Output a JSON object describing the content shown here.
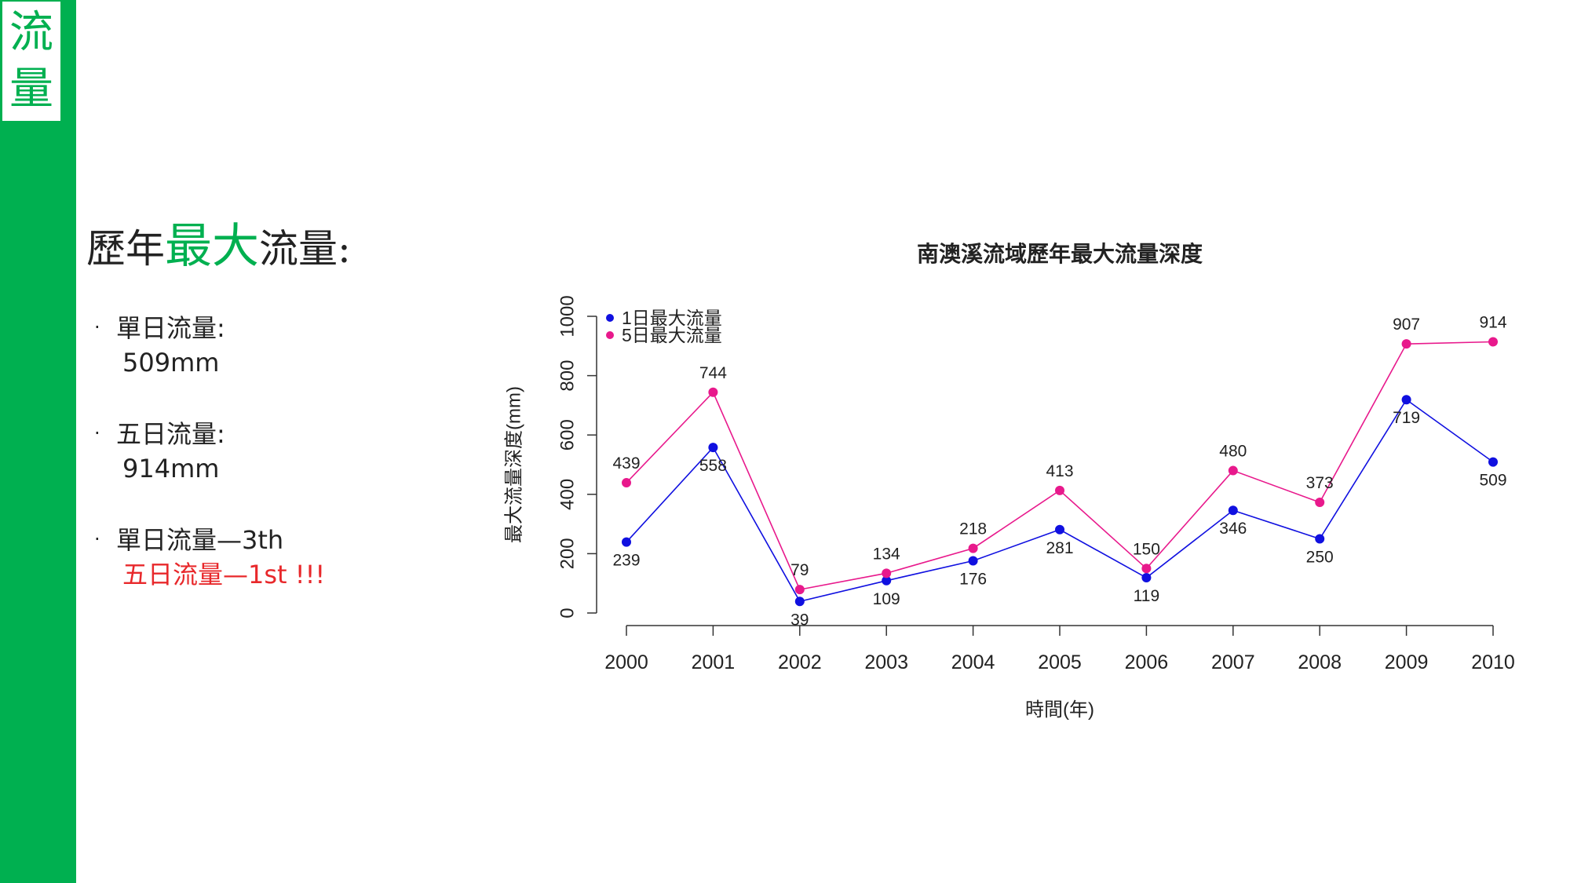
{
  "sidebar": {
    "chars": [
      "流",
      "量"
    ]
  },
  "heading": {
    "prefix": "歷年",
    "accent": "最大",
    "suffix": "流量:"
  },
  "bullets": [
    {
      "label": "單日流量:",
      "value": "509mm"
    },
    {
      "label": "五日流量:",
      "value": "914mm"
    },
    {
      "label": "單日流量—3th",
      "value": "五日流量—1st !!!"
    }
  ],
  "colors": {
    "accent": "#00b050",
    "highlight": "#e8282b",
    "series1": "#1010e0",
    "series5": "#e8198c"
  },
  "chart_data": {
    "type": "line",
    "title": "南澳溪流域歷年最大流量深度",
    "xlabel": "時間(年)",
    "ylabel": "最大流量深度(mm)",
    "x": [
      2000,
      2001,
      2002,
      2003,
      2004,
      2005,
      2006,
      2007,
      2008,
      2009,
      2010
    ],
    "ylim": [
      0,
      1000
    ],
    "yticks": [
      0,
      200,
      400,
      600,
      800,
      1000
    ],
    "legend": "top-left",
    "grid": false,
    "series": [
      {
        "name": "1日最大流量",
        "color": "#1010e0",
        "values": [
          239,
          558,
          39,
          109,
          176,
          281,
          119,
          346,
          250,
          719,
          509
        ]
      },
      {
        "name": "5日最大流量",
        "color": "#e8198c",
        "values": [
          439,
          744,
          79,
          134,
          218,
          413,
          150,
          480,
          373,
          907,
          914
        ]
      }
    ]
  }
}
